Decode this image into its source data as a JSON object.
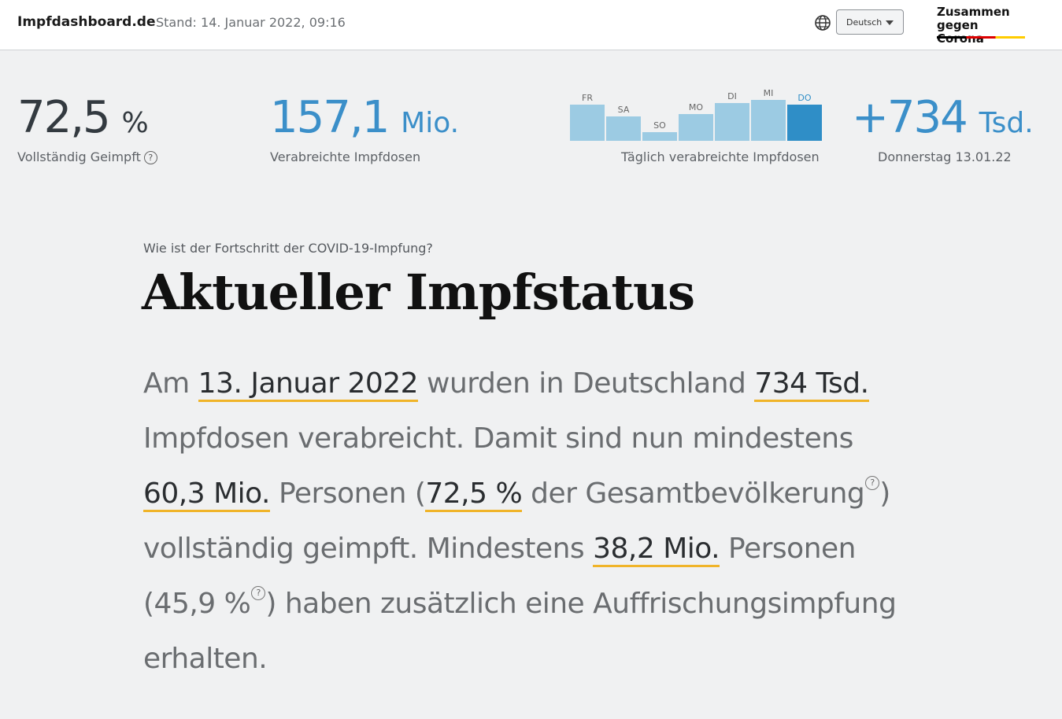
{
  "header": {
    "site_name": "Impfdashboard.de",
    "stand": "Stand: 14. Januar 2022, 09:16",
    "language": "Deutsch",
    "logo_line1": "Zusammen",
    "logo_line2": "gegen Corona",
    "icons": {
      "globe": "globe-icon",
      "caret": "chevron-down-icon"
    }
  },
  "kpis": {
    "fully_vaccinated": {
      "value": "72,5",
      "unit": "%",
      "label": "Vollständig Geimpft",
      "help": "?"
    },
    "doses_total": {
      "value": "157,1",
      "unit": "Mio.",
      "label": "Verabreichte Impfdosen"
    },
    "daily": {
      "value": "+734",
      "unit": "Tsd.",
      "label": "Donnerstag 13.01.22"
    }
  },
  "chart_data": {
    "type": "bar",
    "categories": [
      "FR",
      "SA",
      "SO",
      "MO",
      "DI",
      "MI",
      "DO"
    ],
    "values": [
      46,
      31,
      11,
      34,
      48,
      52,
      46
    ],
    "highlight_index": 6,
    "xlabel": "Täglich verabreichte Impfdosen",
    "ylabel": "",
    "colors": {
      "bar": "#9ccbe3",
      "highlight": "#2f8ec7"
    }
  },
  "main": {
    "question": "Wie ist der Fortschritt der COVID-19-Impfung?",
    "title": "Aktueller Impfstatus",
    "p1": "Am ",
    "date": "13. Januar 2022",
    "p2": " wurden in Deutschland ",
    "doses_day": "734 Tsd.",
    "p3": " Impfdosen verabreicht. Damit sind nun mindestens ",
    "persons_full": "60,3 Mio.",
    "p4": " Personen (",
    "pct_full": "72,5 %",
    "p5": " der Gesamtbevölkerung",
    "p6": ") vollständig geimpft. Mindestens ",
    "persons_booster": "38,2 Mio.",
    "p7": " Personen (45,9 %",
    "p8": ") haben zusätzlich eine Auffrischungsimpfung erhalten.",
    "help": "?"
  },
  "colors": {
    "accent": "#3b8fc9",
    "underline": "#f0b429",
    "background": "#f0f1f2"
  }
}
